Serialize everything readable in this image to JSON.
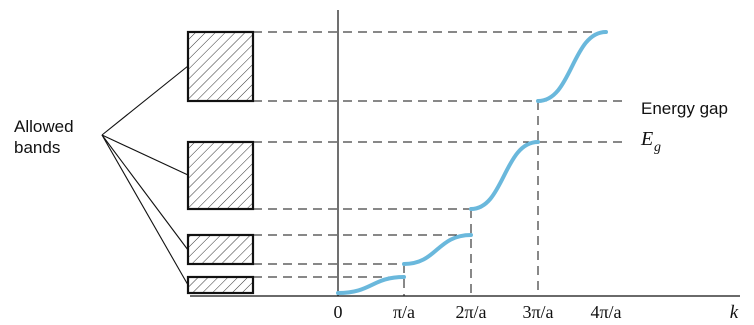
{
  "labels": {
    "allowed_line1": "Allowed",
    "allowed_line2": "bands",
    "energy_gap": "Energy gap",
    "eg_symbol": "E",
    "eg_subscript": "g"
  },
  "axis": {
    "ticks": [
      "0",
      "π/a",
      "2π/a",
      "3π/a",
      "4π/a"
    ],
    "k_label": "k"
  },
  "colors": {
    "curve": "#6ab8dc",
    "band_fill": "#ffffff",
    "lines": "#111111"
  }
}
